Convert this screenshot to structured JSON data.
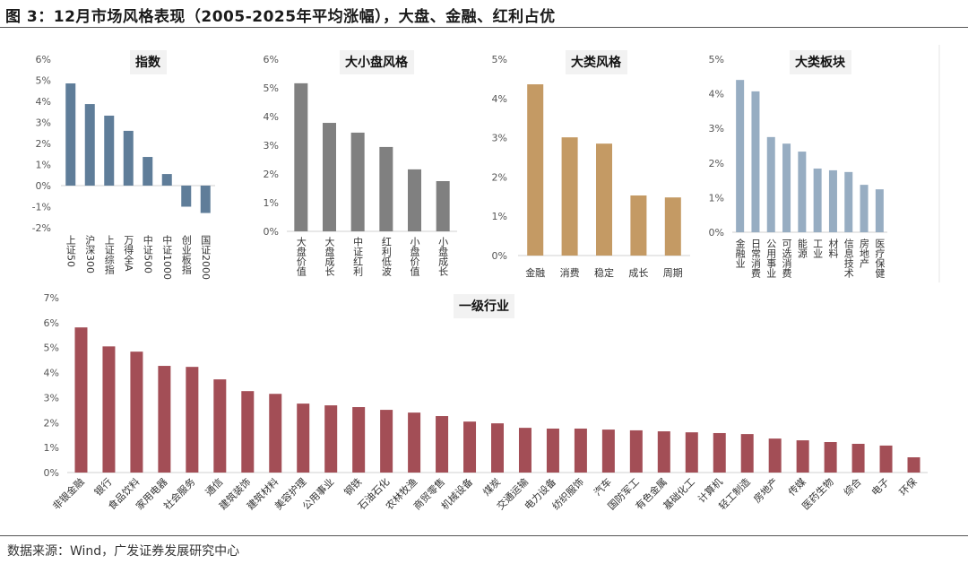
{
  "figure_title": "图 3：12月市场风格表现（2005-2025年平均涨幅），大盘、金融、红利占优",
  "source": "数据来源：Wind，广发证券发展研究中心",
  "chart_data": [
    {
      "type": "bar",
      "title": "指数",
      "color": "#5f7d99",
      "ylim": [
        -0.02,
        0.06
      ],
      "yticks": [
        "6%",
        "5%",
        "4%",
        "3%",
        "2%",
        "1%",
        "0%",
        "-1%",
        "-2%"
      ],
      "categories": [
        "上证50",
        "沪深300",
        "上证综指",
        "万得全A",
        "中证500",
        "中证1000",
        "创业板指",
        "国证2000"
      ],
      "values": [
        0.0485,
        0.0387,
        0.0332,
        0.026,
        0.0136,
        0.0055,
        -0.01,
        -0.013
      ]
    },
    {
      "type": "bar",
      "title": "大小盘风格",
      "color": "#808080",
      "ylim": [
        0,
        0.06
      ],
      "yticks": [
        "6%",
        "5%",
        "4%",
        "3%",
        "2%",
        "1%",
        "0%"
      ],
      "categories": [
        "大盘价值",
        "大盘成长",
        "中证红利",
        "红利低波",
        "小盘价值",
        "小盘成长"
      ],
      "values": [
        0.0516,
        0.0378,
        0.0344,
        0.0294,
        0.0216,
        0.0175
      ]
    },
    {
      "type": "bar",
      "title": "大类风格",
      "color": "#c49a64",
      "ylim": [
        0,
        0.05
      ],
      "yticks": [
        "5%",
        "4%",
        "3%",
        "2%",
        "1%",
        "0%"
      ],
      "categories": [
        "金融",
        "消费",
        "稳定",
        "成长",
        "周期"
      ],
      "values": [
        0.0436,
        0.0301,
        0.0285,
        0.0153,
        0.0148
      ]
    },
    {
      "type": "bar",
      "title": "大类板块",
      "color": "#97adc2",
      "ylim": [
        0,
        0.05
      ],
      "yticks": [
        "5%",
        "4%",
        "3%",
        "2%",
        "1%",
        "0%"
      ],
      "categories": [
        "金融业",
        "日常消费",
        "公用事业",
        "可选消费",
        "能源",
        "工业",
        "材料",
        "信息技术",
        "房地产",
        "医疗保健"
      ],
      "values": [
        0.044,
        0.0407,
        0.0275,
        0.0256,
        0.0233,
        0.0184,
        0.0179,
        0.0174,
        0.0137,
        0.0124
      ]
    },
    {
      "type": "bar",
      "title": "一级行业",
      "color": "#a34e56",
      "ylim": [
        0,
        0.07
      ],
      "yticks": [
        "7%",
        "6%",
        "5%",
        "4%",
        "3%",
        "2%",
        "1%",
        "0%"
      ],
      "categories": [
        "非银金融",
        "银行",
        "食品饮料",
        "家用电器",
        "社会服务",
        "通信",
        "建筑装饰",
        "建筑材料",
        "美容护理",
        "公用事业",
        "钢铁",
        "石油石化",
        "农林牧渔",
        "商贸零售",
        "机械设备",
        "煤炭",
        "交通运输",
        "电力设备",
        "纺织服饰",
        "汽车",
        "国防军工",
        "有色金属",
        "基础化工",
        "计算机",
        "轻工制造",
        "房地产",
        "传媒",
        "医药生物",
        "综合",
        "电子",
        "环保"
      ],
      "values": [
        0.0581,
        0.0505,
        0.0484,
        0.0427,
        0.0423,
        0.0373,
        0.0326,
        0.0315,
        0.0276,
        0.0269,
        0.0262,
        0.0251,
        0.024,
        0.0226,
        0.0204,
        0.0197,
        0.0179,
        0.0176,
        0.0176,
        0.0172,
        0.0169,
        0.0165,
        0.0161,
        0.0158,
        0.0154,
        0.0136,
        0.0129,
        0.0122,
        0.0115,
        0.0108,
        0.0061
      ]
    }
  ]
}
